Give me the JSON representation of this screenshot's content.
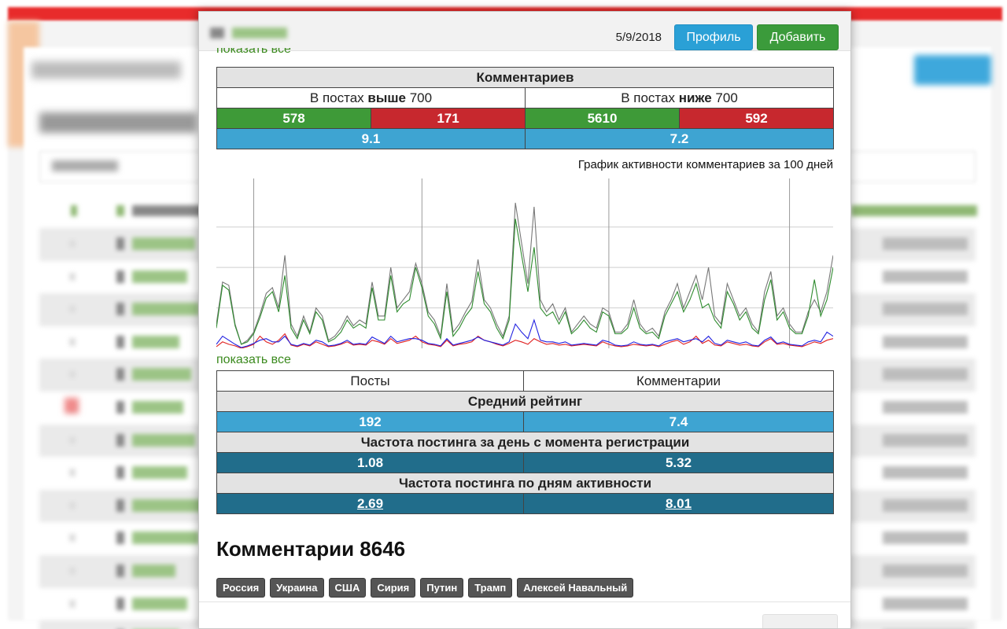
{
  "header": {
    "date": "5/9/2018",
    "profile_label": "Профиль",
    "add_label": "Добавить"
  },
  "top_link": "показать все",
  "comments_table": {
    "title": "Комментариев",
    "above": {
      "prefix": "В постах ",
      "bold": "выше",
      "value": " 700"
    },
    "below": {
      "prefix": "В постах ",
      "bold": "ниже",
      "value": " 700"
    },
    "above_positive": "578",
    "above_negative": "171",
    "below_positive": "5610",
    "below_negative": "592",
    "above_avg": "9.1",
    "below_avg": "7.2"
  },
  "chart_caption": "График активности комментариев за 100 дней",
  "chart_data": {
    "type": "line",
    "title": "График активности комментариев за 100 дней",
    "x": [
      1,
      2,
      3,
      4,
      5,
      6,
      7,
      8,
      9,
      10,
      11,
      12,
      13,
      14,
      15,
      16,
      17,
      18,
      19,
      20,
      21,
      22,
      23,
      24,
      25,
      26,
      27,
      28,
      29,
      30,
      31,
      32,
      33,
      34,
      35,
      36,
      37,
      38,
      39,
      40,
      41,
      42,
      43,
      44,
      45,
      46,
      47,
      48,
      49,
      50,
      51,
      52,
      53,
      54,
      55,
      56,
      57,
      58,
      59,
      60,
      61,
      62,
      63,
      64,
      65,
      66,
      67,
      68,
      69,
      70,
      71,
      72,
      73,
      74,
      75,
      76,
      77,
      78,
      79,
      80,
      81,
      82,
      83,
      84,
      85,
      86,
      87,
      88,
      89,
      90,
      91,
      92,
      93,
      94,
      95,
      96,
      97,
      98,
      99,
      100
    ],
    "ylim": [
      0,
      210
    ],
    "grid": true,
    "series": [
      {
        "color": "#777777",
        "values": [
          30,
          82,
          78,
          30,
          5,
          10,
          20,
          42,
          68,
          75,
          50,
          115,
          30,
          15,
          40,
          20,
          50,
          40,
          10,
          15,
          25,
          40,
          28,
          35,
          30,
          82,
          40,
          40,
          100,
          50,
          60,
          70,
          105,
          80,
          45,
          35,
          15,
          80,
          20,
          30,
          45,
          58,
          110,
          60,
          50,
          30,
          15,
          40,
          180,
          130,
          80,
          175,
          60,
          45,
          55,
          35,
          50,
          20,
          30,
          40,
          30,
          25,
          50,
          45,
          20,
          20,
          30,
          60,
          30,
          20,
          25,
          15,
          45,
          60,
          80,
          50,
          70,
          90,
          60,
          100,
          40,
          30,
          80,
          60,
          40,
          50,
          30,
          20,
          70,
          95,
          40,
          50,
          30,
          20,
          20,
          45,
          60,
          45,
          70,
          115
        ]
      },
      {
        "color": "#2e8b2e",
        "values": [
          25,
          78,
          72,
          28,
          5,
          8,
          18,
          38,
          62,
          70,
          45,
          90,
          25,
          12,
          35,
          18,
          45,
          35,
          8,
          12,
          20,
          35,
          25,
          30,
          25,
          75,
          35,
          35,
          90,
          45,
          55,
          60,
          100,
          75,
          40,
          30,
          12,
          70,
          15,
          25,
          40,
          50,
          95,
          55,
          45,
          25,
          12,
          35,
          160,
          115,
          70,
          125,
          50,
          40,
          45,
          30,
          45,
          18,
          25,
          35,
          25,
          20,
          45,
          40,
          18,
          18,
          25,
          50,
          25,
          18,
          20,
          12,
          40,
          55,
          70,
          45,
          60,
          80,
          50,
          55,
          35,
          25,
          70,
          55,
          35,
          45,
          25,
          18,
          60,
          85,
          35,
          45,
          25,
          18,
          18,
          40,
          85,
          40,
          60,
          100
        ]
      },
      {
        "color": "#e02020",
        "values": [
          2,
          8,
          5,
          3,
          0,
          2,
          5,
          15,
          8,
          5,
          10,
          18,
          4,
          2,
          5,
          3,
          8,
          5,
          2,
          3,
          5,
          8,
          4,
          5,
          4,
          10,
          8,
          5,
          12,
          6,
          8,
          10,
          15,
          8,
          5,
          4,
          2,
          10,
          3,
          5,
          6,
          8,
          15,
          10,
          8,
          5,
          3,
          6,
          10,
          8,
          5,
          12,
          8,
          5,
          6,
          4,
          5,
          3,
          4,
          5,
          4,
          3,
          8,
          5,
          3,
          2,
          3,
          5,
          4,
          3,
          4,
          2,
          5,
          8,
          10,
          5,
          8,
          15,
          6,
          10,
          4,
          3,
          8,
          6,
          4,
          5,
          3,
          2,
          8,
          12,
          5,
          6,
          4,
          3,
          2,
          5,
          8,
          6,
          10,
          12
        ]
      },
      {
        "color": "#2020e0",
        "values": [
          5,
          15,
          10,
          5,
          1,
          3,
          6,
          10,
          12,
          8,
          8,
          15,
          5,
          3,
          6,
          4,
          10,
          8,
          3,
          4,
          6,
          10,
          5,
          6,
          5,
          14,
          10,
          6,
          15,
          8,
          10,
          12,
          12,
          10,
          6,
          5,
          3,
          12,
          4,
          6,
          8,
          10,
          14,
          10,
          8,
          6,
          4,
          8,
          30,
          20,
          12,
          35,
          10,
          8,
          8,
          6,
          8,
          4,
          5,
          6,
          5,
          4,
          10,
          8,
          4,
          3,
          4,
          8,
          5,
          4,
          5,
          3,
          8,
          10,
          12,
          8,
          10,
          12,
          8,
          15,
          6,
          4,
          10,
          8,
          6,
          8,
          4,
          3,
          10,
          14,
          6,
          8,
          5,
          4,
          3,
          8,
          10,
          8,
          20,
          15
        ]
      }
    ]
  },
  "show_all_label": "показать все",
  "posts_table": {
    "col_posts": "Посты",
    "col_comments": "Комментарии",
    "avg_rating_title": "Средний рейтинг",
    "avg_rating_posts": "192",
    "avg_rating_comments": "7.4",
    "freq_reg_title": "Частота постинга за день с момента регистрации",
    "freq_reg_posts": "1.08",
    "freq_reg_comments": "5.32",
    "freq_active_title": "Частота постинга по дням активности",
    "freq_active_posts": "2.69",
    "freq_active_comments": "8.01"
  },
  "comments_heading": "Комментарии 8646",
  "tags": [
    "Россия",
    "Украина",
    "США",
    "Сирия",
    "Путин",
    "Трамп",
    "Алексей Навальный"
  ]
}
